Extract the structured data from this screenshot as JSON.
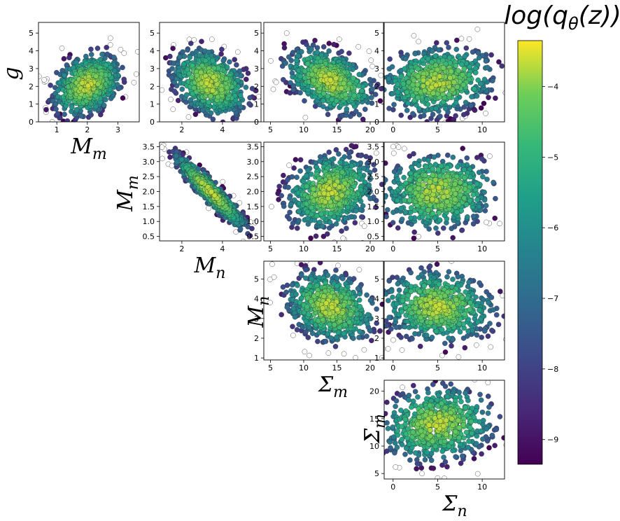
{
  "colorbar": {
    "title": "log(q_θ(z))",
    "ticks": [
      -4,
      -5,
      -6,
      -7,
      -8,
      -9
    ],
    "range": [
      -9.35,
      -3.35
    ],
    "colormap": "viridis"
  },
  "labels": {
    "g": "g",
    "Mm": "M_m",
    "Mn": "M_n",
    "Sm": "Σ_m",
    "Sn": "Σ_n"
  },
  "chart_data": [
    {
      "type": "scatter",
      "id": "Mm-g",
      "xlabel": "M_m",
      "ylabel": "g",
      "xlim": [
        0.4,
        3.7
      ],
      "ylim": [
        0,
        5.6
      ],
      "xticks": [
        1,
        2,
        3
      ],
      "yticks": [
        0,
        1,
        2,
        3,
        4,
        5
      ],
      "center": [
        2.0,
        2.1
      ],
      "spread": [
        0.55,
        0.85
      ],
      "corr": 0.3,
      "n": 650
    },
    {
      "type": "scatter",
      "id": "Mn-g",
      "ylabel": "g",
      "xlim": [
        0.9,
        5.9
      ],
      "ylim": [
        0,
        5.6
      ],
      "xticks": [
        2,
        4
      ],
      "yticks": [
        0,
        1,
        2,
        3,
        4,
        5
      ],
      "center": [
        3.4,
        2.2
      ],
      "spread": [
        0.9,
        0.9
      ],
      "corr": -0.3,
      "n": 650
    },
    {
      "type": "scatter",
      "id": "Sm-g",
      "ylabel": "g",
      "xlim": [
        4,
        22
      ],
      "ylim": [
        0,
        5.6
      ],
      "xticks": [
        5,
        10,
        15,
        20
      ],
      "yticks": [
        0,
        1,
        2,
        3,
        4,
        5
      ],
      "center": [
        14,
        2.3
      ],
      "spread": [
        3.2,
        0.9
      ],
      "corr": -0.4,
      "n": 650
    },
    {
      "type": "scatter",
      "id": "Sn-g",
      "ylabel": "g",
      "xlim": [
        -1,
        12.5
      ],
      "ylim": [
        0,
        5.6
      ],
      "xticks": [
        0,
        5,
        10
      ],
      "yticks": [
        0,
        1,
        2,
        3,
        4,
        5
      ],
      "center": [
        5,
        2.3
      ],
      "spread": [
        3,
        0.9
      ],
      "corr": 0.15,
      "n": 650
    },
    {
      "type": "scatter",
      "id": "Mn-Mm",
      "xlabel": "M_n",
      "ylabel": "M_m",
      "xlim": [
        0.9,
        5.9
      ],
      "ylim": [
        0.35,
        3.65
      ],
      "xticks": [
        2,
        4
      ],
      "yticks": [
        0.5,
        1.0,
        1.5,
        2.0,
        2.5,
        3.0,
        3.5
      ],
      "center": [
        3.4,
        2.0
      ],
      "spread": [
        0.85,
        0.6
      ],
      "corr": -0.93,
      "n": 650
    },
    {
      "type": "scatter",
      "id": "Sm-Mm",
      "xlim": [
        4,
        22
      ],
      "ylim": [
        0.35,
        3.65
      ],
      "xticks": [
        5,
        10,
        15,
        20
      ],
      "yticks": [
        0.5,
        1.0,
        1.5,
        2.0,
        2.5,
        3.0,
        3.5
      ],
      "center": [
        14,
        2.0
      ],
      "spread": [
        3.2,
        0.6
      ],
      "corr": 0.2,
      "n": 650
    },
    {
      "type": "scatter",
      "id": "Sn-Mm",
      "xlim": [
        -1,
        12.5
      ],
      "ylim": [
        0.35,
        3.65
      ],
      "xticks": [
        0,
        5,
        10
      ],
      "yticks": [
        0.5,
        1.0,
        1.5,
        2.0,
        2.5,
        3.0,
        3.5
      ],
      "center": [
        5,
        2.0
      ],
      "spread": [
        3,
        0.6
      ],
      "corr": 0.05,
      "n": 650
    },
    {
      "type": "scatter",
      "id": "Sm-Mn",
      "xlabel": "Σ_m",
      "ylabel": "M_n",
      "xlim": [
        4,
        22
      ],
      "ylim": [
        0.9,
        5.9
      ],
      "xticks": [
        5,
        10,
        15,
        20
      ],
      "yticks": [
        1,
        2,
        3,
        4,
        5
      ],
      "center": [
        14,
        3.6
      ],
      "spread": [
        3.2,
        0.85
      ],
      "corr": -0.25,
      "n": 650
    },
    {
      "type": "scatter",
      "id": "Sn-Mn",
      "xlim": [
        -1,
        12.5
      ],
      "ylim": [
        0.9,
        5.9
      ],
      "xticks": [
        0,
        5,
        10
      ],
      "yticks": [
        1,
        2,
        3,
        4,
        5
      ],
      "center": [
        5,
        3.6
      ],
      "spread": [
        3,
        0.85
      ],
      "corr": -0.1,
      "n": 650
    },
    {
      "type": "scatter",
      "id": "Sn-Sm",
      "xlabel": "Σ_n",
      "ylabel": "Σ_m",
      "xlim": [
        -1,
        12.5
      ],
      "ylim": [
        4,
        22
      ],
      "xticks": [
        0,
        5,
        10
      ],
      "yticks": [
        5,
        10,
        15,
        20
      ],
      "center": [
        5,
        14
      ],
      "spread": [
        3,
        3.2
      ],
      "corr": 0.1,
      "n": 650
    }
  ]
}
